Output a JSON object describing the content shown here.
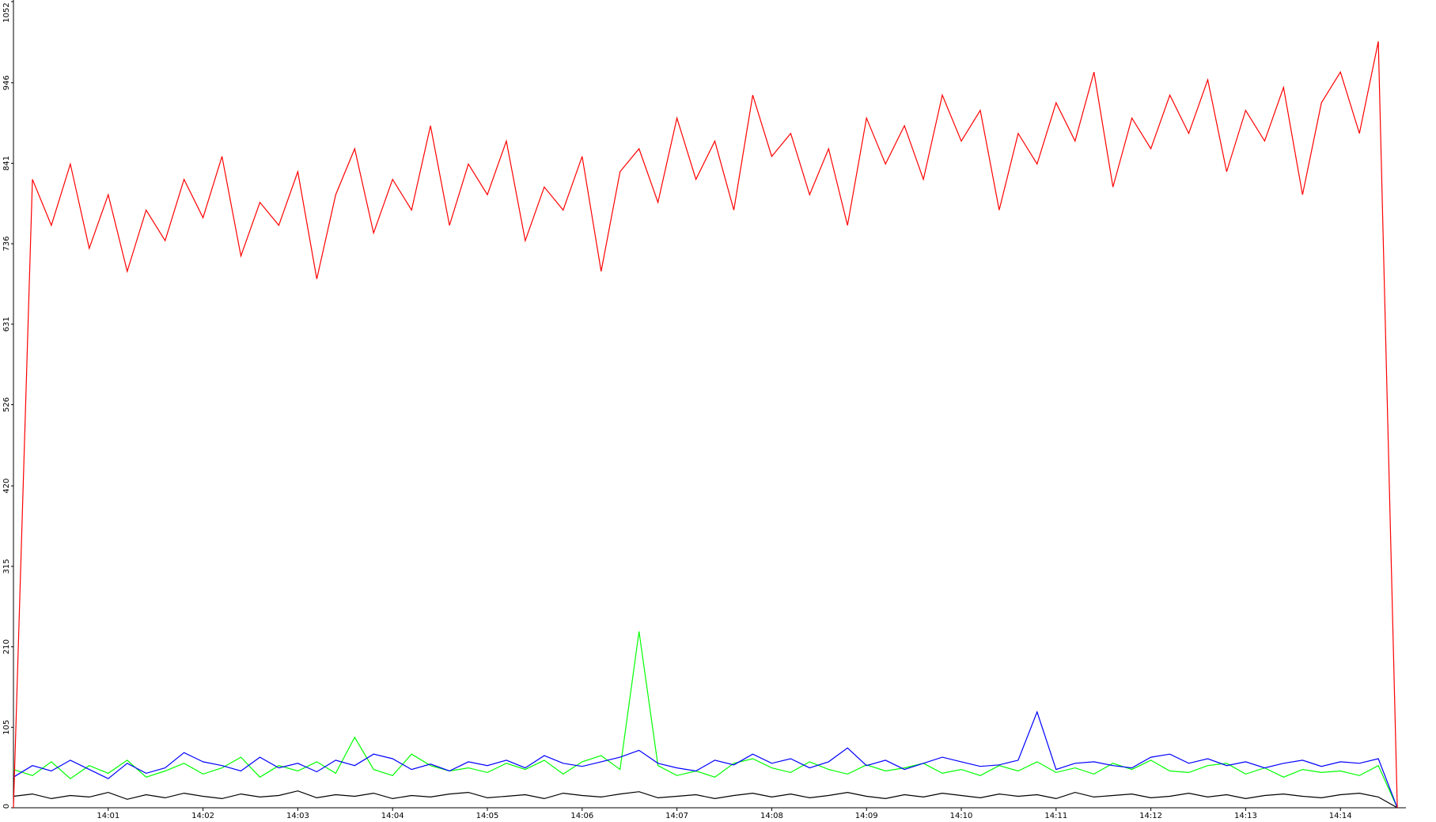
{
  "chart_data": {
    "type": "line",
    "categories": [
      null,
      null,
      null,
      null,
      null,
      "14:01",
      null,
      null,
      null,
      null,
      "14:02",
      null,
      null,
      null,
      null,
      "14:03",
      null,
      null,
      null,
      null,
      "14:04",
      null,
      null,
      null,
      null,
      "14:05",
      null,
      null,
      null,
      null,
      "14:06",
      null,
      null,
      null,
      null,
      "14:07",
      null,
      null,
      null,
      null,
      "14:08",
      null,
      null,
      null,
      null,
      "14:09",
      null,
      null,
      null,
      null,
      "14:10",
      null,
      null,
      null,
      null,
      "14:11",
      null,
      null,
      null,
      null,
      "14:12",
      null,
      null,
      null,
      null,
      "14:13",
      null,
      null,
      null,
      null,
      "14:14",
      null,
      null,
      null
    ],
    "series": [
      {
        "color": "#ff0000",
        "values": [
          0,
          820,
          760,
          840,
          730,
          800,
          700,
          780,
          740,
          820,
          770,
          850,
          720,
          790,
          760,
          830,
          690,
          800,
          860,
          750,
          820,
          780,
          890,
          760,
          840,
          800,
          870,
          740,
          810,
          780,
          850,
          700,
          830,
          860,
          790,
          900,
          820,
          870,
          780,
          930,
          850,
          880,
          800,
          860,
          760,
          900,
          840,
          890,
          820,
          930,
          870,
          910,
          780,
          880,
          840,
          920,
          870,
          960,
          810,
          900,
          860,
          930,
          880,
          950,
          830,
          910,
          870,
          940,
          800,
          920,
          960,
          880,
          1000,
          0
        ]
      },
      {
        "color": "#0000ff",
        "values": [
          40,
          55,
          48,
          62,
          50,
          38,
          58,
          45,
          52,
          72,
          60,
          55,
          48,
          66,
          52,
          58,
          47,
          62,
          55,
          70,
          64,
          50,
          57,
          48,
          60,
          55,
          62,
          52,
          68,
          58,
          54,
          60,
          66,
          75,
          58,
          52,
          48,
          62,
          56,
          70,
          58,
          64,
          52,
          60,
          78,
          55,
          62,
          50,
          58,
          66,
          60,
          54,
          56,
          62,
          125,
          50,
          58,
          60,
          55,
          52,
          66,
          70,
          58,
          64,
          55,
          60,
          52,
          58,
          62,
          54,
          60,
          58,
          64,
          0
        ]
      },
      {
        "color": "#00ff00",
        "values": [
          50,
          42,
          60,
          38,
          55,
          45,
          62,
          40,
          48,
          58,
          44,
          52,
          66,
          40,
          55,
          48,
          60,
          45,
          92,
          50,
          42,
          70,
          55,
          48,
          52,
          46,
          58,
          50,
          62,
          44,
          60,
          68,
          50,
          230,
          55,
          42,
          48,
          40,
          58,
          64,
          52,
          46,
          60,
          50,
          44,
          56,
          48,
          52,
          58,
          45,
          50,
          42,
          55,
          48,
          60,
          46,
          52,
          44,
          58,
          50,
          62,
          48,
          46,
          55,
          58,
          44,
          52,
          40,
          50,
          46,
          48,
          42,
          55,
          0
        ]
      },
      {
        "color": "#000000",
        "values": [
          15,
          18,
          12,
          16,
          14,
          20,
          11,
          17,
          13,
          19,
          15,
          12,
          18,
          14,
          16,
          22,
          13,
          17,
          15,
          19,
          12,
          16,
          14,
          18,
          20,
          13,
          15,
          17,
          12,
          19,
          16,
          14,
          18,
          21,
          13,
          15,
          17,
          12,
          16,
          19,
          14,
          18,
          13,
          16,
          20,
          15,
          12,
          17,
          14,
          19,
          16,
          13,
          18,
          15,
          17,
          12,
          20,
          14,
          16,
          18,
          13,
          15,
          19,
          14,
          17,
          12,
          16,
          18,
          15,
          13,
          17,
          19,
          14,
          0
        ]
      }
    ],
    "ylim": [
      0,
      1052
    ],
    "yticks": [
      0,
      105,
      210,
      315,
      420,
      526,
      631,
      736,
      841,
      946,
      1052
    ]
  }
}
